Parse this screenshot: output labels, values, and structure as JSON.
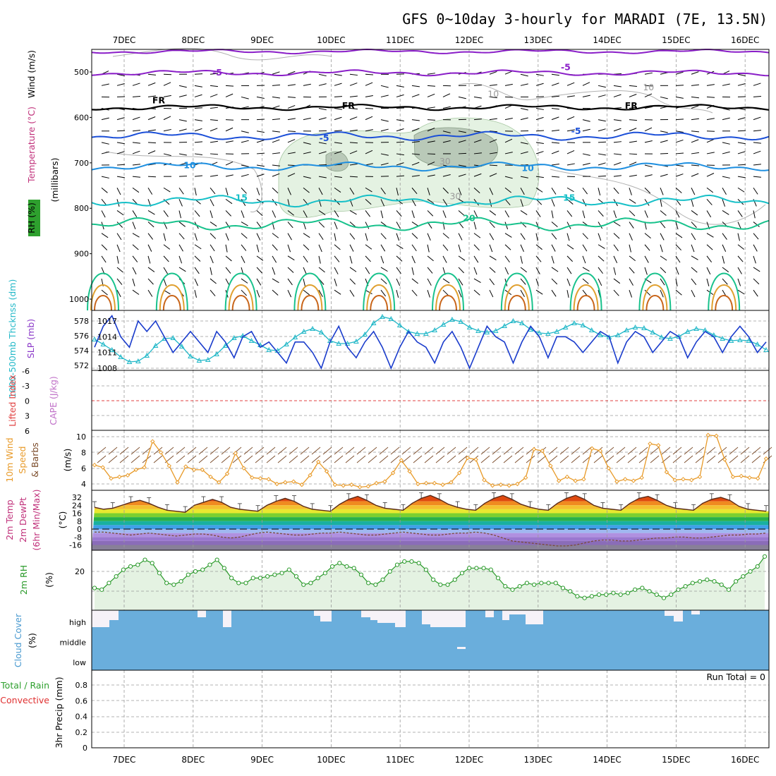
{
  "title": "GFS 0~10day 3-hourly for MARADI (7E, 13.5N)",
  "x_dates": [
    "7DEC",
    "8DEC",
    "9DEC",
    "10DEC",
    "11DEC",
    "12DEC",
    "13DEC",
    "14DEC",
    "15DEC",
    "16DEC"
  ],
  "colors": {
    "purple": "#8a1ec8",
    "black": "#000000",
    "blue": "#1b4fd8",
    "lightblue": "#1e8fe0",
    "cyan": "#16c0c8",
    "teal": "#18c28c",
    "orange": "#e0a030",
    "darkorange": "#c86418",
    "magenta": "#c0148c",
    "slp": "#1a3ccc",
    "thick": "#22b8c8",
    "wind10": "#e89a28",
    "rh2": "#2a9a2a",
    "cloud": "#6aaedc",
    "cape": "#c070c8",
    "li": "#e04040"
  },
  "panels": {
    "profile": {
      "y_label_wind": "Wind (m/s)",
      "y_label_temp": "Temperature (°C)",
      "y_label_rh": "RH (%)",
      "y_label_mb": "(millibars)",
      "levels": [
        "500",
        "600",
        "700",
        "800",
        "900",
        "1000"
      ],
      "contour_labels": [
        {
          "text": "-5",
          "color": "purple",
          "day": 1.35,
          "mb": 508
        },
        {
          "text": "-5",
          "color": "purple",
          "day": 6.4,
          "mb": 496
        },
        {
          "text": "FR",
          "color": "black",
          "day": 0.5,
          "mb": 569
        },
        {
          "text": "FR",
          "color": "black",
          "day": 3.25,
          "mb": 581
        },
        {
          "text": "FR",
          "color": "black",
          "day": 7.35,
          "mb": 581
        },
        {
          "text": "-5",
          "color": "blue",
          "day": 2.9,
          "mb": 652
        },
        {
          "text": "-5",
          "color": "blue",
          "day": 6.55,
          "mb": 637
        },
        {
          "text": "10",
          "color": "lightblue",
          "day": 0.95,
          "mb": 712
        },
        {
          "text": "10",
          "color": "lightblue",
          "day": 5.85,
          "mb": 718
        },
        {
          "text": "15",
          "color": "cyan",
          "day": 1.7,
          "mb": 783
        },
        {
          "text": "15",
          "color": "cyan",
          "day": 6.45,
          "mb": 783
        },
        {
          "text": "20",
          "color": "teal",
          "day": 5.0,
          "mb": 828
        },
        {
          "text": "10",
          "color": "gray",
          "day": 5.35,
          "mb": 555
        },
        {
          "text": "10",
          "color": "gray",
          "day": 7.6,
          "mb": 540
        },
        {
          "text": "30",
          "color": "gray",
          "day": 4.65,
          "mb": 703
        },
        {
          "text": "30",
          "color": "gray",
          "day": 4.8,
          "mb": 780
        }
      ]
    },
    "slp": {
      "y_label_thick": "1000-500mb Thcknss (dm)",
      "y_label_slp": "SLP (mb)",
      "thick_ticks": [
        "578",
        "576",
        "574",
        "572"
      ],
      "slp_ticks": [
        "1017",
        "1014",
        "1011",
        "1008"
      ],
      "slp_values": [
        1012,
        1016,
        1018,
        1014,
        1012,
        1017,
        1015,
        1017,
        1014,
        1011,
        1013,
        1015,
        1013,
        1011,
        1015,
        1013,
        1010,
        1014,
        1015,
        1012,
        1013,
        1011,
        1009,
        1013,
        1013,
        1011,
        1008,
        1013,
        1016,
        1012,
        1010,
        1013,
        1015,
        1012,
        1008,
        1012,
        1015,
        1013,
        1012,
        1009,
        1013,
        1015,
        1012,
        1008,
        1012,
        1016,
        1014,
        1013,
        1009,
        1013,
        1016,
        1014,
        1010,
        1014,
        1014,
        1013,
        1011,
        1013,
        1015,
        1014,
        1009,
        1013,
        1015,
        1014,
        1011,
        1013,
        1015,
        1014,
        1010,
        1013,
        1015,
        1014,
        1011,
        1014,
        1016,
        1014,
        1011,
        1013
      ],
      "thick_values": [
        575.5,
        574.8,
        574.0,
        573.0,
        572.3,
        572.4,
        573.2,
        574.6,
        575.6,
        575.7,
        574.5,
        573.1,
        572.5,
        572.6,
        573.4,
        574.6,
        575.7,
        576.0,
        575.3,
        574.7,
        574.0,
        573.9,
        574.8,
        575.8,
        576.6,
        577.0,
        576.5,
        575.3,
        574.9,
        574.9,
        575.2,
        576.2,
        577.8,
        578.7,
        578.4,
        577.5,
        576.6,
        576.3,
        576.3,
        576.8,
        577.6,
        578.3,
        578.0,
        577.2,
        576.7,
        576.5,
        576.7,
        577.4,
        578.1,
        577.8,
        576.9,
        576.4,
        576.3,
        576.6,
        577.2,
        577.8,
        577.5,
        576.8,
        576.1,
        575.8,
        576.1,
        576.8,
        577.2,
        577.1,
        576.5,
        575.8,
        575.6,
        575.9,
        576.6,
        577.0,
        576.8,
        576.1,
        575.6,
        575.3,
        575.4,
        575.3,
        574.8,
        574.0
      ]
    },
    "cape": {
      "y_label_li": "Lifted Index",
      "y_label_cape": "CAPE (J/kg)",
      "li_ticks": [
        "-6",
        "-3",
        "0",
        "3",
        "6"
      ]
    },
    "wind10": {
      "y_label_a": "10m Wind",
      "y_label_b": "Speed",
      "y_label_c": "& Barbs",
      "y_unit": "(m/s)",
      "ticks": [
        "10",
        "8",
        "6",
        "4"
      ],
      "values": [
        6.4,
        6.1,
        4.7,
        4.9,
        5.1,
        5.8,
        6.1,
        9.4,
        8.0,
        6.3,
        4.2,
        6.2,
        5.8,
        5.8,
        4.9,
        4.2,
        5.3,
        7.9,
        6.0,
        4.8,
        4.7,
        4.6,
        4.0,
        4.2,
        4.3,
        3.9,
        5.1,
        6.8,
        5.6,
        3.9,
        3.8,
        3.9,
        3.6,
        3.7,
        4.1,
        4.3,
        5.4,
        7.0,
        5.6,
        4.0,
        4.1,
        4.1,
        3.9,
        4.2,
        5.4,
        7.3,
        7.1,
        4.5,
        3.8,
        3.9,
        3.8,
        4.0,
        4.8,
        8.4,
        8.2,
        6.3,
        4.4,
        4.9,
        4.4,
        4.6,
        8.5,
        8.2,
        6.0,
        4.3,
        4.6,
        4.4,
        4.8,
        9.1,
        8.9,
        5.5,
        4.5,
        4.6,
        4.5,
        4.9,
        10.2,
        10.1,
        7.1,
        4.9,
        5.0,
        4.8,
        4.7,
        7.2
      ]
    },
    "temp2m": {
      "y_label_a": "2m Temp",
      "y_label_b": "2m DewPt",
      "y_label_c": "(6hr Min/Max)",
      "y_unit": "(°C)",
      "ticks": [
        "32",
        "24",
        "16",
        "8",
        "0",
        "-8",
        "-16"
      ],
      "temp_values": [
        22,
        20,
        21,
        24,
        27,
        29,
        26,
        22,
        19,
        18,
        17,
        24,
        27,
        30,
        27,
        22,
        20,
        19,
        18,
        24,
        28,
        31,
        28,
        23,
        20,
        19,
        18,
        25,
        30,
        33,
        29,
        24,
        21,
        20,
        19,
        26,
        31,
        34,
        30,
        25,
        22,
        20,
        19,
        26,
        31,
        34,
        30,
        25,
        22,
        20,
        19,
        26,
        31,
        34,
        30,
        24,
        21,
        20,
        19,
        26,
        31,
        33,
        29,
        24,
        21,
        20,
        19,
        26,
        30,
        32,
        29,
        23,
        20,
        19,
        18
      ],
      "dew_values": [
        -3,
        -3,
        -4,
        -5,
        -6,
        -5,
        -4,
        -5,
        -6,
        -7,
        -6,
        -5,
        -5,
        -6,
        -8,
        -9,
        -8,
        -6,
        -4,
        -3,
        -4,
        -5,
        -6,
        -6,
        -5,
        -4,
        -4,
        -3,
        -4,
        -5,
        -6,
        -6,
        -5,
        -4,
        -3,
        -4,
        -5,
        -6,
        -6,
        -5,
        -4,
        -4,
        -3,
        -4,
        -6,
        -9,
        -12,
        -13,
        -14,
        -15,
        -16,
        -17,
        -17,
        -16,
        -14,
        -12,
        -11,
        -11,
        -12,
        -12,
        -11,
        -10,
        -9,
        -9,
        -8,
        -8,
        -9,
        -9,
        -8,
        -7,
        -6,
        -6,
        -5,
        -5,
        -4
      ]
    },
    "rh2m": {
      "y_label": "2m RH",
      "y_unit": "(%)",
      "ticks": [
        "20"
      ],
      "values": [
        10,
        9,
        13,
        17,
        21,
        23,
        24,
        27,
        25,
        19,
        13,
        12,
        14,
        18,
        20,
        21,
        24,
        27,
        22,
        16,
        13,
        13,
        16,
        16,
        17,
        18,
        19,
        21,
        17,
        12,
        13,
        16,
        19,
        23,
        25,
        23,
        22,
        18,
        13,
        12,
        15,
        20,
        24,
        26,
        26,
        25,
        21,
        15,
        12,
        12,
        15,
        19,
        22,
        22,
        22,
        21,
        16,
        11,
        9,
        11,
        13,
        12,
        13,
        13,
        13,
        10,
        8,
        5,
        4,
        5,
        6,
        6,
        7,
        6,
        7,
        9,
        10,
        8,
        6,
        4,
        6,
        9,
        11,
        13,
        14,
        15,
        14,
        12,
        9,
        14,
        17,
        20,
        23,
        29
      ]
    },
    "cloud": {
      "y_label": "Cloud Cover",
      "y_unit": "(%)",
      "levels": [
        "high",
        "middle",
        "low"
      ]
    },
    "precip": {
      "y_label_a": "Total / Rain",
      "y_label_b": "Convective",
      "y_label_c": "3hr Precip (mm)",
      "ticks": [
        "0.8",
        "0.6",
        "0.4",
        "0.2",
        "0"
      ],
      "run_total": "Run Total = 0"
    }
  }
}
